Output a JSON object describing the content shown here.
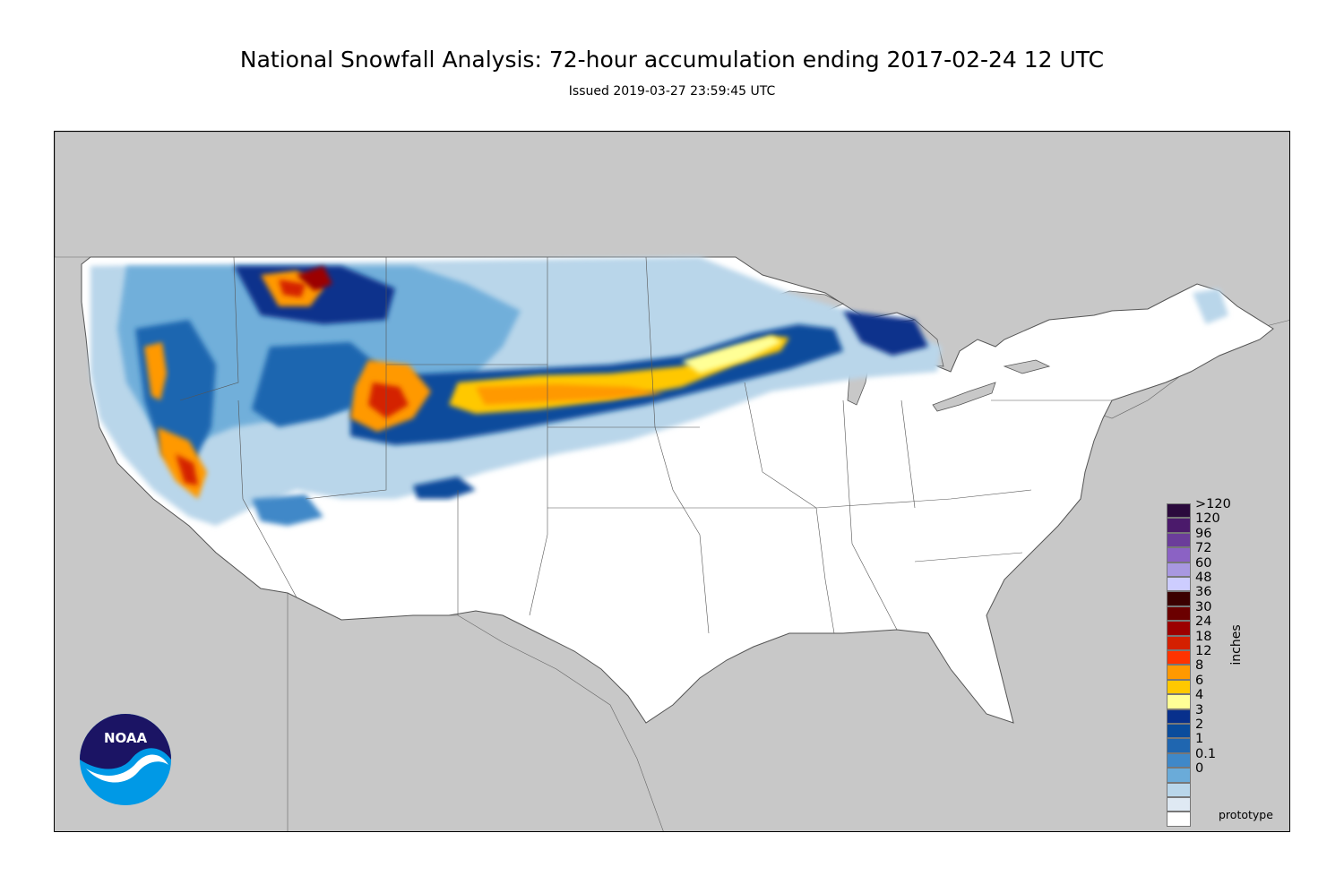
{
  "title": "National Snowfall Analysis: 72-hour accumulation ending 2017-02-24 12 UTC",
  "subtitle": "Issued 2019-03-27 23:59:45 UTC",
  "map": {
    "land_color": "#ffffff",
    "background_color": "#c8c8c8",
    "border_color": "#555555",
    "region": "Contiguous United States"
  },
  "legend": {
    "units": "inches",
    "levels": [
      {
        "label": ">120",
        "color": "#2b0a3d"
      },
      {
        "label": "120",
        "color": "#4b1a6b"
      },
      {
        "label": "96",
        "color": "#6b3d9a"
      },
      {
        "label": "72",
        "color": "#8b62c4"
      },
      {
        "label": "60",
        "color": "#a898e0"
      },
      {
        "label": "48",
        "color": "#cdcdff"
      },
      {
        "label": "36",
        "color": "#3b0000"
      },
      {
        "label": "30",
        "color": "#6b0000"
      },
      {
        "label": "24",
        "color": "#9c0000"
      },
      {
        "label": "18",
        "color": "#d42000"
      },
      {
        "label": "12",
        "color": "#ff3300"
      },
      {
        "label": "8",
        "color": "#ff9900"
      },
      {
        "label": "6",
        "color": "#ffc800"
      },
      {
        "label": "4",
        "color": "#ffff96"
      },
      {
        "label": "3",
        "color": "#08308c"
      },
      {
        "label": "2",
        "color": "#0a4c9c"
      },
      {
        "label": "1",
        "color": "#1f66b0"
      },
      {
        "label": "0.1",
        "color": "#3f88c8"
      },
      {
        "label": "0",
        "color": "#6aabd9"
      }
    ],
    "low_bins": [
      {
        "color": "#b9d6ea"
      },
      {
        "color": "#dfe9f3"
      },
      {
        "color": "#ffffff"
      }
    ]
  },
  "footer": "prototype",
  "logo": {
    "text": "NOAA",
    "icon": "noaa-logo-icon"
  }
}
